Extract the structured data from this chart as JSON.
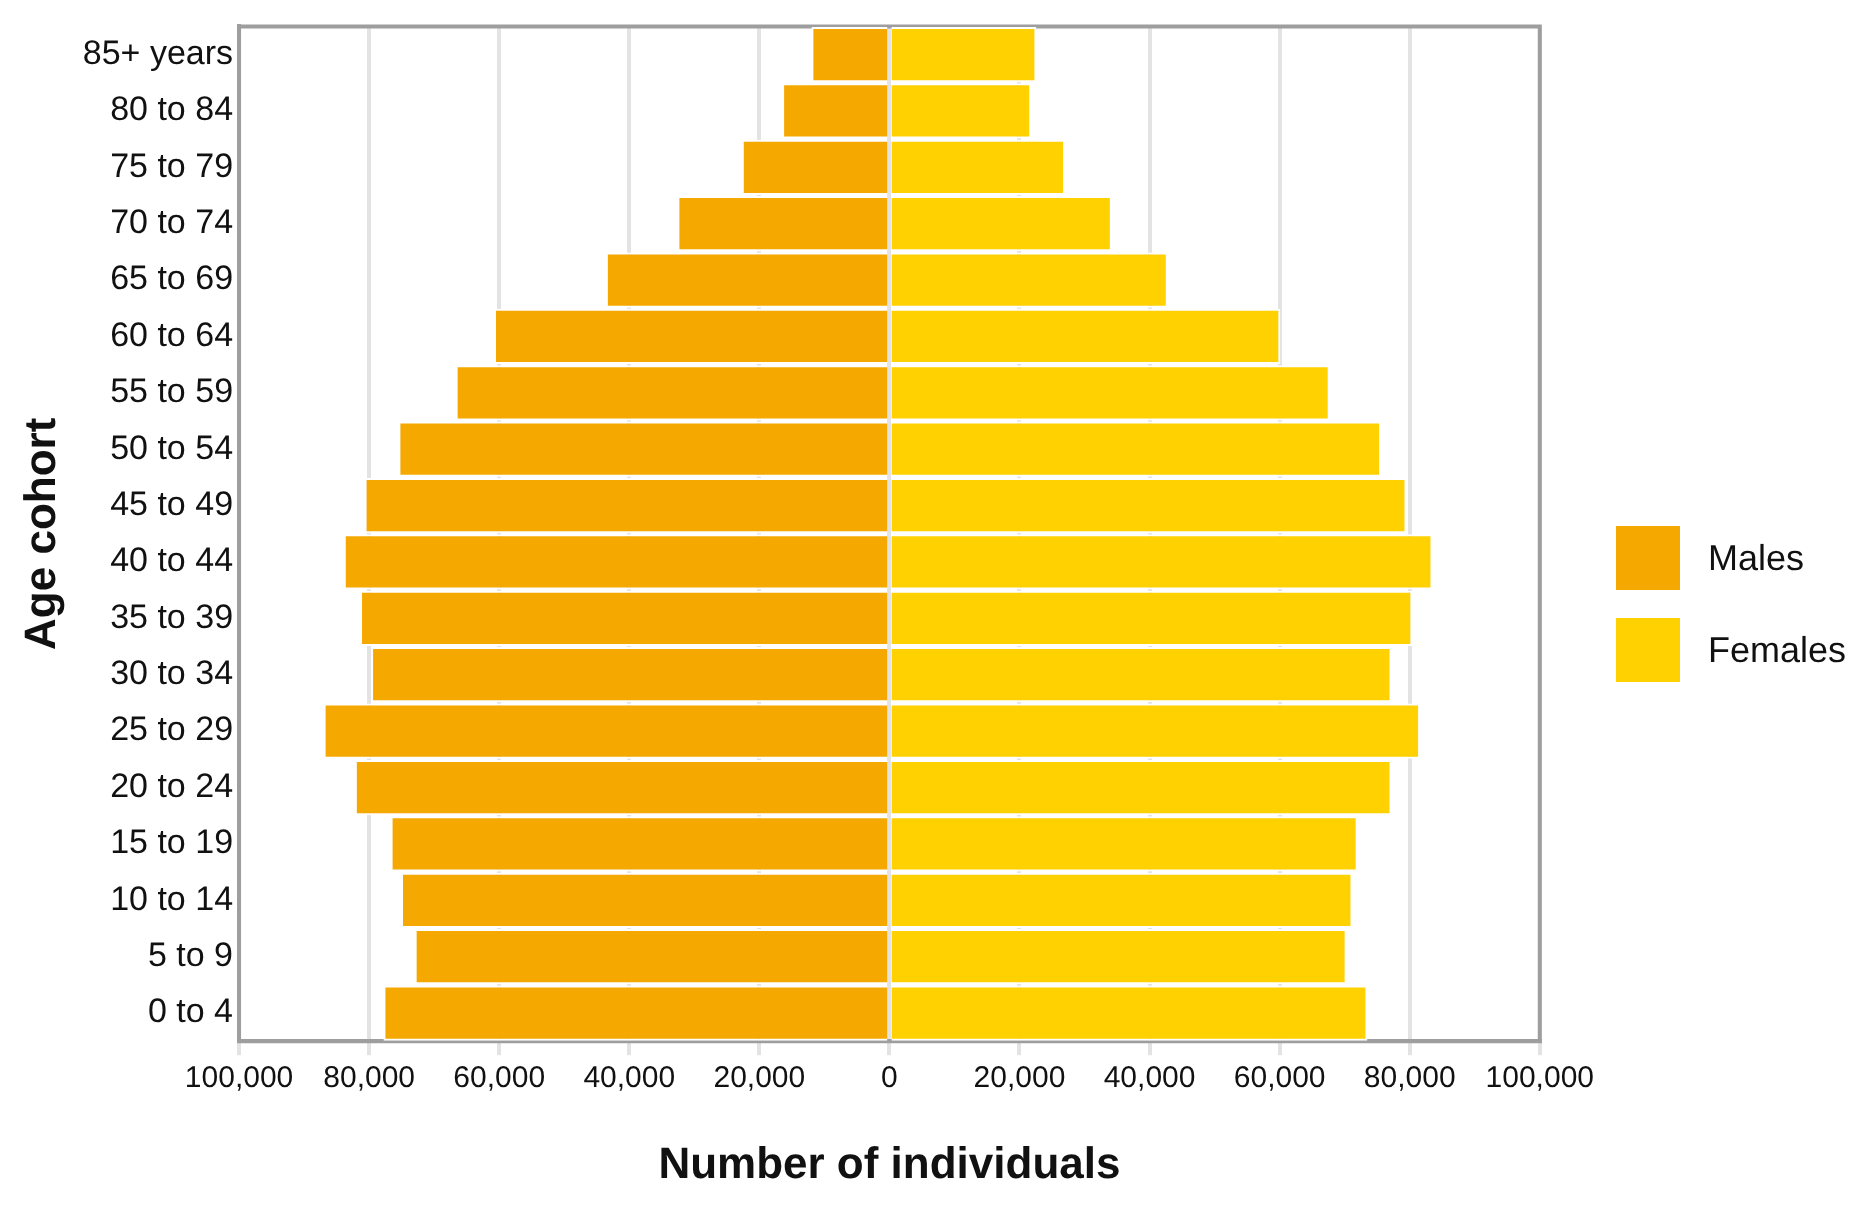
{
  "chart_data": {
    "type": "bar",
    "orientation": "horizontal",
    "xlabel": "Number of individuals",
    "ylabel": "Age cohort",
    "categories": [
      "85+ years",
      "80 to 84",
      "75 to 79",
      "70 to 74",
      "65 to 69",
      "60 to 64",
      "55 to 59",
      "50 to 54",
      "45 to 49",
      "40 to 44",
      "35 to 39",
      "30 to 34",
      "25 to 29",
      "20 to 24",
      "15 to 19",
      "10 to 14",
      "5 to 9",
      "0 to 4"
    ],
    "series": [
      {
        "name": "Males",
        "color": "#f5a800",
        "values": [
          -12000,
          -16500,
          -22700,
          -32600,
          -43600,
          -60800,
          -66700,
          -75500,
          -80700,
          -83900,
          -81400,
          -79700,
          -87000,
          -82200,
          -76700,
          -75100,
          -73000,
          -77800
        ]
      },
      {
        "name": "Females",
        "color": "#ffd100",
        "values": [
          22600,
          21800,
          27000,
          34200,
          42800,
          60100,
          67700,
          75600,
          79500,
          83500,
          80400,
          77200,
          81600,
          77200,
          72000,
          71200,
          70300,
          73500
        ]
      }
    ],
    "xlim": [
      -100000,
      100000
    ],
    "xticks": [
      {
        "value": -100000,
        "label": "100,000"
      },
      {
        "value": -80000,
        "label": "80,000"
      },
      {
        "value": -60000,
        "label": "60,000"
      },
      {
        "value": -40000,
        "label": "40,000"
      },
      {
        "value": -20000,
        "label": "20,000"
      },
      {
        "value": 0,
        "label": "0"
      },
      {
        "value": 20000,
        "label": "20,000"
      },
      {
        "value": 40000,
        "label": "40,000"
      },
      {
        "value": 60000,
        "label": "60,000"
      },
      {
        "value": 80000,
        "label": "80,000"
      },
      {
        "value": 100000,
        "label": "100,000"
      }
    ],
    "stacked": true,
    "grid": "x",
    "legend": "right"
  }
}
